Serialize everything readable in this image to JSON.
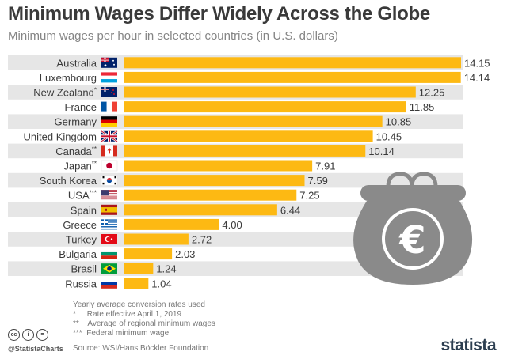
{
  "header": {
    "title": "Minimum Wages Differ Widely Across the Globe",
    "subtitle": "Minimum wages per hour in selected countries (in U.S. dollars)"
  },
  "colors": {
    "bar": "#FDB913",
    "row_stripe": "#E6E6E6",
    "text": "#3A3A3A",
    "muted": "#777777",
    "purse": "#8A8A8A"
  },
  "chart_data": {
    "type": "bar",
    "orientation": "horizontal",
    "categories": [
      "Australia",
      "Luxembourg",
      "New Zealand*",
      "France",
      "Germany",
      "United Kingdom",
      "Canada**",
      "Japan**",
      "South Korea",
      "USA***",
      "Spain",
      "Greece",
      "Turkey",
      "Bulgaria",
      "Brasil",
      "Russia"
    ],
    "values": [
      14.15,
      14.14,
      12.25,
      11.85,
      10.85,
      10.45,
      10.14,
      7.91,
      7.59,
      7.25,
      6.44,
      4.0,
      2.72,
      2.03,
      1.24,
      1.04
    ],
    "value_labels": [
      "14.15",
      "14.14",
      "12.25",
      "11.85",
      "10.85",
      "10.45",
      "10.14",
      "7.91",
      "7.59",
      "7.25",
      "6.44",
      "4.00",
      "2.72",
      "2.03",
      "1.24",
      "1.04"
    ],
    "flag_icons": [
      "australia-flag",
      "luxembourg-flag",
      "new-zealand-flag",
      "france-flag",
      "germany-flag",
      "uk-flag",
      "canada-flag",
      "japan-flag",
      "south-korea-flag",
      "usa-flag",
      "spain-flag",
      "greece-flag",
      "turkey-flag",
      "bulgaria-flag",
      "brazil-flag",
      "russia-flag"
    ],
    "xlim": [
      0,
      14.15
    ],
    "grid": false,
    "legend": "none"
  },
  "illustration": {
    "icon": "euro-purse-icon",
    "symbol": "€"
  },
  "footnotes": [
    "Yearly average conversion rates used",
    "*     Rate effective April 1, 2019",
    "**    Average of regional minimum wages",
    "***  Federal minimum wage"
  ],
  "source": "Source: WSI/Hans Böckler Foundation",
  "branding": {
    "handle": "@StatistaCharts",
    "logo": "statista",
    "license_icons": [
      "cc-icon",
      "by-icon",
      "nd-icon"
    ],
    "license_symbols": [
      "cc",
      "i",
      "="
    ]
  }
}
